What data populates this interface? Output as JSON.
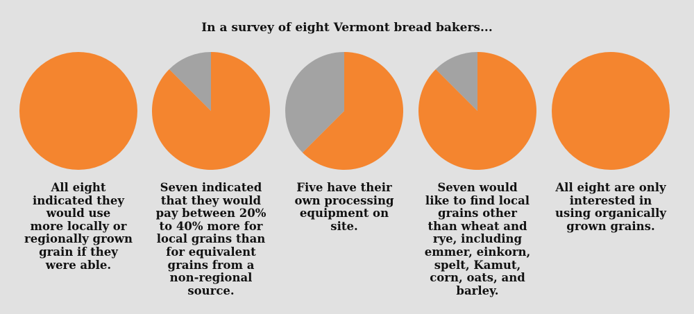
{
  "title": "In a survey of eight Vermont bread bakers...",
  "colors": {
    "yes": "#f4852f",
    "no": "#a3a3a3",
    "background": "#e1e1e1"
  },
  "chart_data": [
    {
      "type": "pie",
      "slices": [
        {
          "value": 8,
          "color": "#f4852f"
        },
        {
          "value": 0,
          "color": "#a3a3a3"
        }
      ],
      "total": 8,
      "caption": [
        "All eight",
        "indicated they",
        "would use",
        "more locally or",
        "regionally grown",
        "grain if they",
        "were able."
      ]
    },
    {
      "type": "pie",
      "slices": [
        {
          "value": 7,
          "color": "#f4852f"
        },
        {
          "value": 1,
          "color": "#a3a3a3"
        }
      ],
      "total": 8,
      "caption": [
        "Seven indicated",
        "that they would",
        "pay between 20%",
        "to 40% more for",
        "local grains than",
        "for equivalent",
        "grains from a",
        "non-regional",
        "source."
      ]
    },
    {
      "type": "pie",
      "slices": [
        {
          "value": 5,
          "color": "#f4852f"
        },
        {
          "value": 3,
          "color": "#a3a3a3"
        }
      ],
      "total": 8,
      "caption": [
        "Five have their",
        "own processing",
        "equipment on",
        "site."
      ]
    },
    {
      "type": "pie",
      "slices": [
        {
          "value": 7,
          "color": "#f4852f"
        },
        {
          "value": 1,
          "color": "#a3a3a3"
        }
      ],
      "total": 8,
      "caption": [
        "Seven would",
        "like to find local",
        "grains other",
        "than wheat and",
        "rye, including",
        "emmer, einkorn,",
        "spelt, Kamut,",
        "corn, oats, and",
        "barley."
      ]
    },
    {
      "type": "pie",
      "slices": [
        {
          "value": 8,
          "color": "#f4852f"
        },
        {
          "value": 0,
          "color": "#a3a3a3"
        }
      ],
      "total": 8,
      "caption": [
        "All eight are only",
        "interested in",
        "using organically",
        "grown grains."
      ]
    }
  ]
}
